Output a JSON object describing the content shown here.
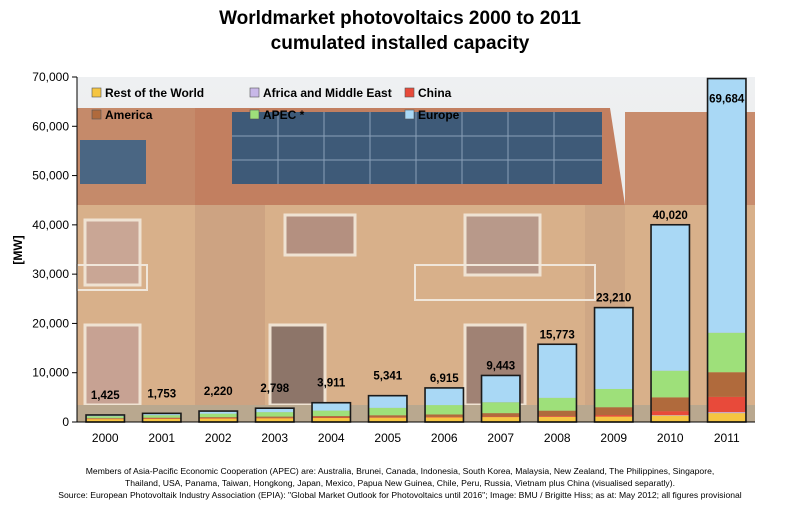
{
  "chart_data": {
    "type": "bar",
    "stacked": true,
    "title": "Worldmarket photovoltaics 2000 to 2011",
    "subtitle": "cumulated installed capacity",
    "xlabel": "",
    "ylabel": "[MW]",
    "ylim": [
      0,
      70000
    ],
    "yticks": [
      0,
      10000,
      20000,
      30000,
      40000,
      50000,
      60000,
      70000
    ],
    "ytick_labels": [
      "0",
      "10,000",
      "20,000",
      "30,000",
      "40,000",
      "50,000",
      "60,000",
      "70,000"
    ],
    "grid": false,
    "legend_position": "top-left",
    "categories": [
      "2000",
      "2001",
      "2002",
      "2003",
      "2004",
      "2005",
      "2006",
      "2007",
      "2008",
      "2009",
      "2010",
      "2011"
    ],
    "totals": [
      1425,
      1753,
      2220,
      2798,
      3911,
      5341,
      6915,
      9443,
      15773,
      23210,
      40020,
      69684
    ],
    "total_labels": [
      "1,425",
      "1,753",
      "2,220",
      "2,798",
      "3,911",
      "5,341",
      "6,915",
      "9,443",
      "15,773",
      "23,210",
      "40,020",
      "69,684"
    ],
    "series": [
      {
        "name": "Rest of the World",
        "color": "#f5c542",
        "values": [
          650,
          700,
          750,
          800,
          850,
          900,
          950,
          1000,
          1050,
          1100,
          1300,
          1800
        ]
      },
      {
        "name": "Africa and Middle East",
        "color": "#c8b8e8",
        "values": [
          0,
          0,
          0,
          0,
          0,
          0,
          0,
          0,
          0,
          0,
          100,
          200
        ]
      },
      {
        "name": "China",
        "color": "#e84a3a",
        "values": [
          20,
          30,
          40,
          50,
          60,
          70,
          80,
          100,
          150,
          300,
          800,
          3100
        ]
      },
      {
        "name": "America",
        "color": "#b06a3c",
        "values": [
          100,
          150,
          200,
          250,
          300,
          400,
          500,
          700,
          1100,
          1600,
          2800,
          5000
        ]
      },
      {
        "name": "APEC *",
        "color": "#9ee07a",
        "values": [
          400,
          500,
          700,
          900,
          1100,
          1500,
          1900,
          2200,
          2600,
          3700,
          5400,
          8000
        ]
      },
      {
        "name": "Europe",
        "color": "#a9d8f5",
        "values": [
          255,
          373,
          530,
          798,
          1601,
          2471,
          3485,
          5443,
          10873,
          16510,
          29620,
          51584
        ]
      }
    ],
    "legend_order": [
      0,
      1,
      2,
      3,
      4,
      5
    ]
  },
  "footnotes": {
    "line1": "Members of Asia-Pacific Economic Cooperation (APEC) are: Australia, Brunei, Canada, Indonesia, South Korea, Malaysia, New Zealand, The Philippines, Singapore,",
    "line2": "Thailand, USA, Panama, Taiwan, Hongkong, Japan, Mexico, Papua New Guinea, Chile, Peru, Russia, Vietnam plus China (visualised separatly).",
    "line3": "Source: European Photovoltaik Industry Association (EPIA): \"Global Market Outlook for Photovoltaics until 2016\"; Image: BMU / Brigitte Hiss; as at: May 2012; all figures provisional"
  }
}
